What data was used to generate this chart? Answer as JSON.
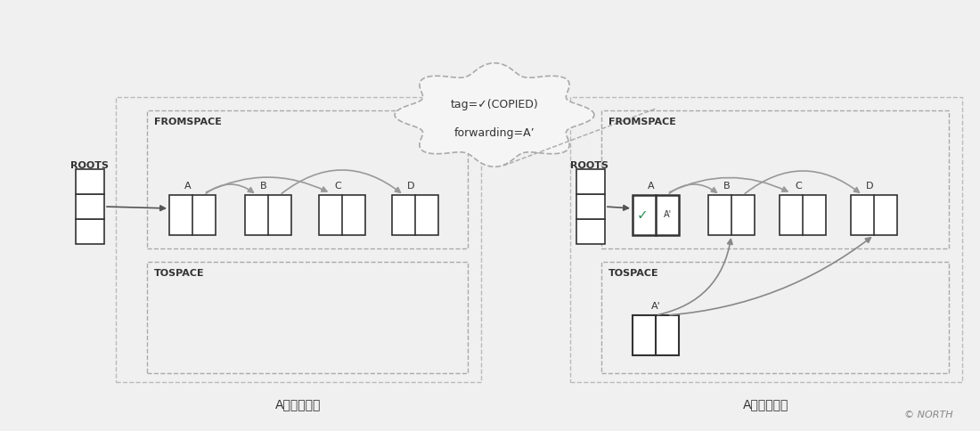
{
  "bg_color": "#f0f0f0",
  "title_before": "A对象复制前",
  "title_after": "A对象复制后",
  "north_label": "© NORTH",
  "cloud_line1": "tag=✓(COPIED)",
  "cloud_line2": "forwarding=A’",
  "fromspace_label": "FROMSPACE",
  "tospace_label": "TOSPACE",
  "roots_label": "ROOTS",
  "obj_labels_before": [
    "A",
    "B",
    "C",
    "D"
  ],
  "obj_labels_after": [
    "A",
    "B",
    "C",
    "D"
  ],
  "check_color": "#2e8b57",
  "box_color": "#333333",
  "arrow_color": "#888888",
  "dashed_color": "#aaaaaa",
  "text_color": "#333333"
}
